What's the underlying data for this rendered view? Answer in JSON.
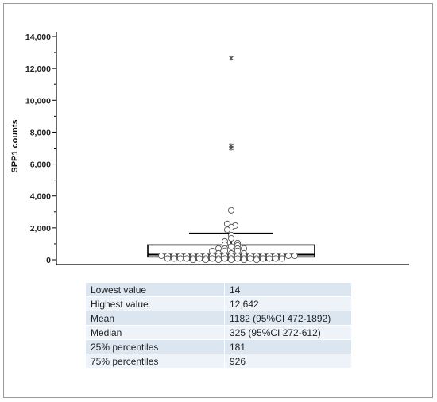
{
  "chart_data": {
    "type": "box",
    "ylabel": "SPP1 counts",
    "ylim": [
      -300,
      14300
    ],
    "yticks": [
      {
        "value": 0,
        "label": "0"
      },
      {
        "value": 2000,
        "label": "2,000"
      },
      {
        "value": 4000,
        "label": "4,000"
      },
      {
        "value": 6000,
        "label": "6,000"
      },
      {
        "value": 8000,
        "label": "8,000"
      },
      {
        "value": 10000,
        "label": "10,000"
      },
      {
        "value": 12000,
        "label": "12,000"
      },
      {
        "value": 14000,
        "label": "14,000"
      }
    ],
    "box": {
      "q1": 181,
      "median": 325,
      "q3": 926,
      "whisker_low": 14,
      "whisker_high": 1650
    },
    "far_outliers": [
      12642,
      7150,
      7000
    ],
    "outliers": [
      3100,
      2250,
      2150,
      2050,
      1880
    ],
    "points": [
      {
        "v": 1550,
        "d": 0
      },
      {
        "v": 1350,
        "d": 0
      },
      {
        "v": 1150,
        "d": -1
      },
      {
        "v": 1050,
        "d": 1
      },
      {
        "v": 950,
        "d": -1
      },
      {
        "v": 900,
        "d": 1
      },
      {
        "v": 820,
        "d": 0
      },
      {
        "v": 700,
        "d": -2
      },
      {
        "v": 700,
        "d": -1
      },
      {
        "v": 700,
        "d": 1
      },
      {
        "v": 700,
        "d": 2
      },
      {
        "v": 550,
        "d": -3
      },
      {
        "v": 560,
        "d": -1
      },
      {
        "v": 560,
        "d": 1
      },
      {
        "v": 400,
        "d": -2
      },
      {
        "v": 400,
        "d": 0
      },
      {
        "v": 400,
        "d": 2
      },
      {
        "v": 250,
        "d": -11
      },
      {
        "v": 250,
        "d": -10
      },
      {
        "v": 250,
        "d": -9
      },
      {
        "v": 250,
        "d": -8
      },
      {
        "v": 250,
        "d": -7
      },
      {
        "v": 250,
        "d": -6
      },
      {
        "v": 250,
        "d": -5
      },
      {
        "v": 250,
        "d": -4
      },
      {
        "v": 250,
        "d": -3
      },
      {
        "v": 250,
        "d": -2
      },
      {
        "v": 250,
        "d": -1
      },
      {
        "v": 250,
        "d": 0
      },
      {
        "v": 250,
        "d": 1
      },
      {
        "v": 250,
        "d": 2
      },
      {
        "v": 250,
        "d": 3
      },
      {
        "v": 250,
        "d": 4
      },
      {
        "v": 250,
        "d": 5
      },
      {
        "v": 250,
        "d": 6
      },
      {
        "v": 250,
        "d": 7
      },
      {
        "v": 250,
        "d": 8
      },
      {
        "v": 250,
        "d": 9
      },
      {
        "v": 250,
        "d": 10
      },
      {
        "v": 80,
        "d": -10
      },
      {
        "v": 80,
        "d": -9
      },
      {
        "v": 80,
        "d": -8
      },
      {
        "v": 80,
        "d": -7
      },
      {
        "v": 80,
        "d": -6
      },
      {
        "v": 80,
        "d": -5
      },
      {
        "v": 80,
        "d": -4
      },
      {
        "v": 80,
        "d": -3
      },
      {
        "v": 80,
        "d": -2
      },
      {
        "v": 80,
        "d": -1
      },
      {
        "v": 80,
        "d": 0
      },
      {
        "v": 80,
        "d": 1
      },
      {
        "v": 80,
        "d": 2
      },
      {
        "v": 80,
        "d": 3
      },
      {
        "v": 80,
        "d": 4
      },
      {
        "v": 80,
        "d": 5
      },
      {
        "v": 80,
        "d": 6
      },
      {
        "v": 80,
        "d": 7
      },
      {
        "v": 80,
        "d": 8
      },
      {
        "v": 0,
        "d": -6
      },
      {
        "v": 0,
        "d": -4
      },
      {
        "v": 0,
        "d": -2
      },
      {
        "v": 0,
        "d": 0
      },
      {
        "v": 0,
        "d": 2
      },
      {
        "v": 0,
        "d": 4
      }
    ],
    "colors": {
      "box": "#000000",
      "marker_fill": "#ffffff",
      "marker_stroke": "#555555",
      "star": "#555555"
    }
  },
  "stats_table": {
    "rows": [
      {
        "label": "Lowest value",
        "value": "14"
      },
      {
        "label": "Highest value",
        "value": "12,642"
      },
      {
        "label": "Mean",
        "value": "1182 (95%CI 472-1892)"
      },
      {
        "label": "Median",
        "value": "325 (95%CI 272-612)"
      },
      {
        "label": "25% percentiles",
        "value": "181"
      },
      {
        "label": "75% percentiles",
        "value": "926"
      }
    ],
    "colors": {
      "row_a": "#dce6f1",
      "row_b": "#eef3f9"
    }
  }
}
